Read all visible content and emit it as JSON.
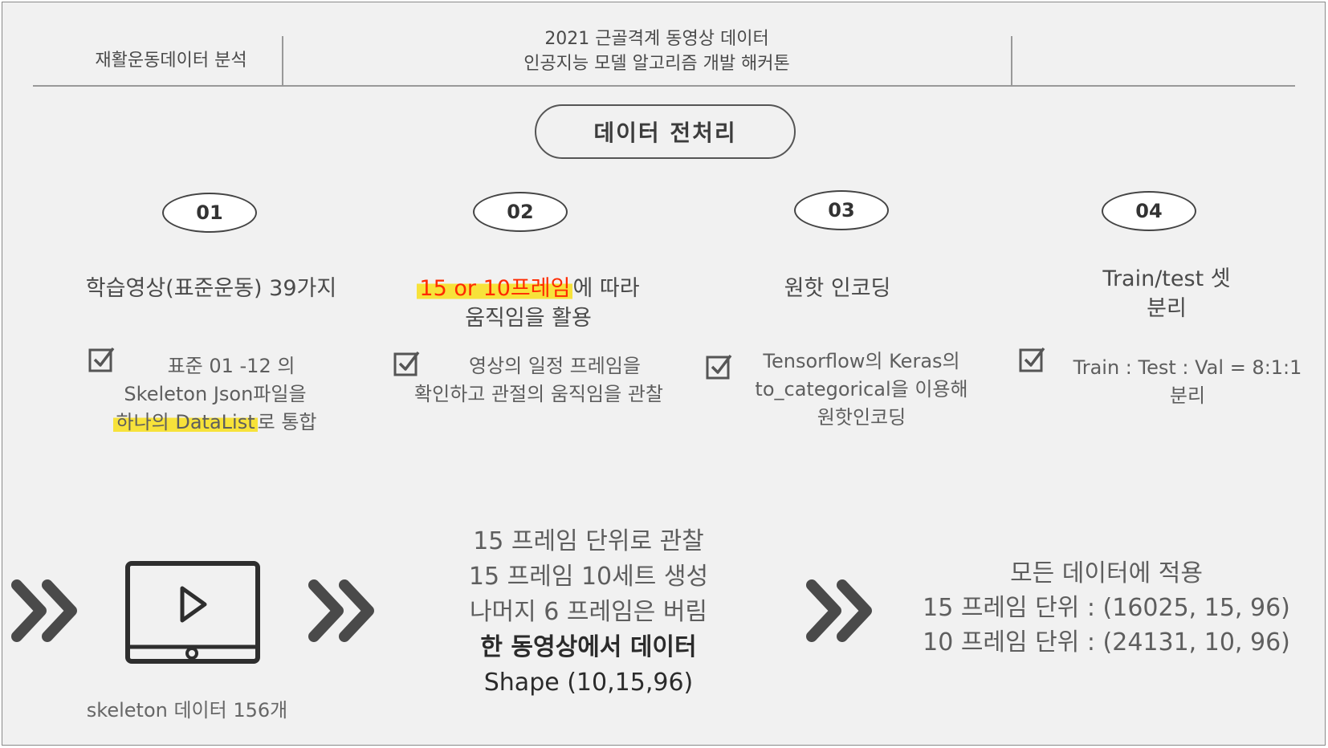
{
  "header": {
    "left_label": "재활운동데이터 분석",
    "center_line1": "2021 근골격계 동영상 데이터",
    "center_line2": "인공지능 모델 알고리즘 개발 해커톤"
  },
  "section_title": "데이터 전처리",
  "steps": [
    {
      "number": "01",
      "title": "학습영상(표준운동) 39가지",
      "desc_line1": "표준 01 -12 의",
      "desc_line2": "Skeleton Json파일을",
      "desc_line3_highlight": "하나의  DataList",
      "desc_line3_rest": "로 통합"
    },
    {
      "number": "02",
      "title_highlight": "15 or 10프레임",
      "title_rest": "에 따라",
      "title_line2": "움직임을 활용",
      "desc_line1": "영상의 일정 프레임을",
      "desc_line2": "확인하고 관절의 움직임을 관찰"
    },
    {
      "number": "03",
      "title": "원핫 인코딩",
      "desc_line1": "Tensorflow의 Keras의",
      "desc_line2": "to_categorical을 이용해",
      "desc_line3": "원핫인코딩"
    },
    {
      "number": "04",
      "title_line1": "Train/test 셋",
      "title_line2": "분리",
      "desc_line1": "Train : Test : Val = 8:1:1",
      "desc_line2": "분리"
    }
  ],
  "bottom": {
    "video_label": "skeleton 데이터 156개",
    "middle": [
      "15 프레임 단위로 관찰",
      "15 프레임 10세트 생성",
      "나머지 6 프레임은 버림",
      "한 동영상에서 데이터",
      "Shape (10,15,96)"
    ],
    "right": [
      "모든 데이터에 적용",
      "15 프레임 단위 : (16025, 15, 96)",
      "10 프레임 단위 : (24131, 10, 96)"
    ]
  },
  "colors": {
    "background": "#f1f1f1",
    "highlight": "#f7e23a",
    "accent_red": "#ff2a00",
    "chevron": "#4a4a4a"
  }
}
